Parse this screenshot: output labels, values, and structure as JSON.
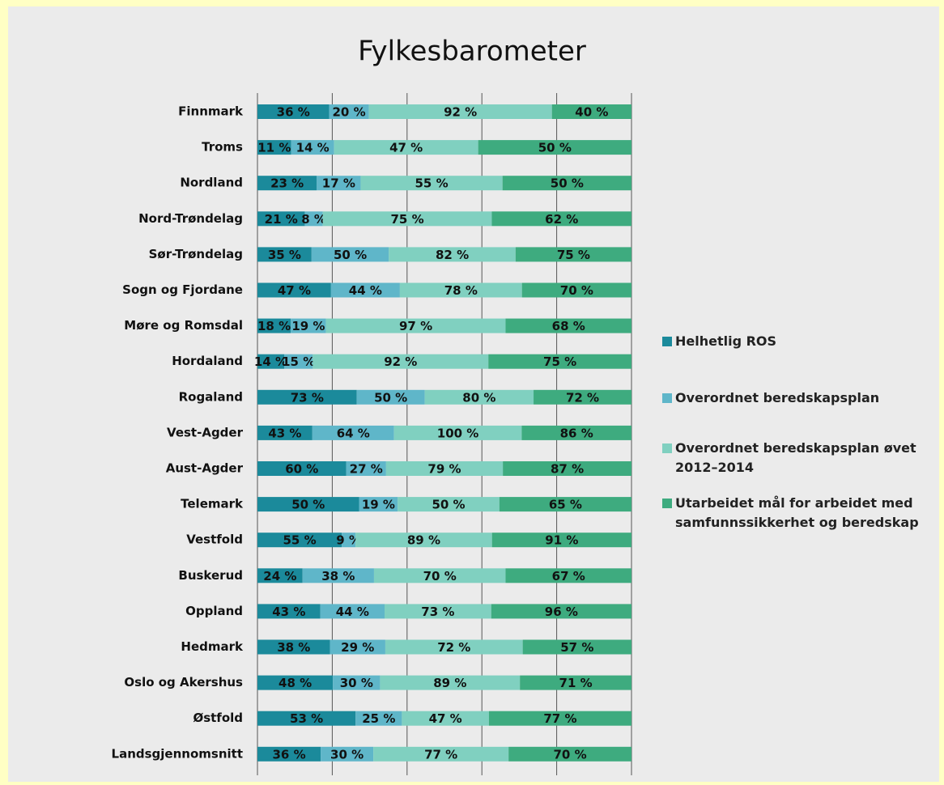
{
  "chart_data": {
    "type": "bar",
    "stacked": "percent",
    "orientation": "horizontal",
    "title": "Fylkesbarometer",
    "categories": [
      "Finnmark",
      "Troms",
      "Nordland",
      "Nord-Trøndelag",
      "Sør-Trøndelag",
      "Sogn og Fjordane",
      "Møre og Romsdal",
      "Hordaland",
      "Rogaland",
      "Vest-Agder",
      "Aust-Agder",
      "Telemark",
      "Vestfold",
      "Buskerud",
      "Oppland",
      "Hedmark",
      "Oslo og Akershus",
      "Østfold",
      "Landsgjennomsnitt"
    ],
    "series": [
      {
        "name": "Helhetlig ROS",
        "color": "#1b8a9b",
        "values": [
          36,
          11,
          23,
          21,
          35,
          47,
          18,
          14,
          73,
          43,
          60,
          50,
          55,
          24,
          43,
          38,
          48,
          53,
          36
        ],
        "value_labels": [
          "36 %",
          "11 %",
          "23 %",
          "21 %",
          "35 %",
          "47 %",
          "18 %",
          "14 %",
          "73 %",
          "43 %",
          "60 %",
          "50 %",
          "55 %",
          "24 %",
          "43 %",
          "38 %",
          "48 %",
          "53 %",
          "36 %"
        ]
      },
      {
        "name": "Overordnet beredskapsplan",
        "color": "#5fb6c9",
        "values": [
          20,
          14,
          17,
          8,
          50,
          44,
          19,
          15,
          50,
          64,
          27,
          19,
          9,
          38,
          44,
          29,
          30,
          25,
          30
        ],
        "value_labels": [
          "20 %",
          "14 %",
          "17 %",
          "8 %",
          "50 %",
          "44 %",
          "19 %",
          "15 %",
          "50 %",
          "64 %",
          "27 %",
          "19 %",
          "9 %",
          "38 %",
          "44 %",
          "29 %",
          "30 %",
          "25 %",
          "30 %"
        ]
      },
      {
        "name": "Overordnet beredskapsplan øvet 2012–2014",
        "color": "#80d0c0",
        "values": [
          92,
          47,
          55,
          75,
          82,
          78,
          97,
          92,
          80,
          100,
          79,
          50,
          89,
          70,
          73,
          72,
          89,
          47,
          77
        ],
        "value_labels": [
          "92 %",
          "47 %",
          "55 %",
          "75 %",
          "82 %",
          "78 %",
          "97 %",
          "92 %",
          "80 %",
          "100 %",
          "79 %",
          "50 %",
          "89 %",
          "70 %",
          "73 %",
          "72 %",
          "89 %",
          "47 %",
          "77 %"
        ]
      },
      {
        "name": "Utarbeidet mål for arbeidet med samfunnssikkerhet og beredskap",
        "color": "#3eab7f",
        "values": [
          40,
          50,
          50,
          62,
          75,
          70,
          68,
          75,
          72,
          86,
          87,
          65,
          91,
          67,
          96,
          57,
          71,
          77,
          70
        ],
        "value_labels": [
          "40 %",
          "50 %",
          "50 %",
          "62 %",
          "75 %",
          "70 %",
          "68 %",
          "75 %",
          "72 %",
          "86 %",
          "87 %",
          "65 %",
          "91 %",
          "67 %",
          "96 %",
          "57 %",
          "71 %",
          "77 %",
          "70 %"
        ]
      }
    ],
    "xlim": [
      0,
      100
    ],
    "xticks": [
      0,
      20,
      40,
      60,
      80,
      100
    ],
    "grid": true,
    "legend": "right"
  }
}
